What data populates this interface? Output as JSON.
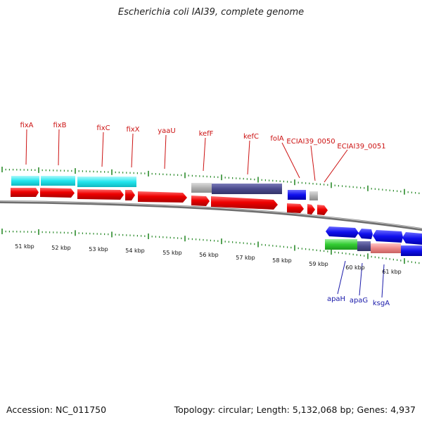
{
  "title": "Escherichia coli IAI39, complete genome",
  "footer": {
    "accession": "Accession: NC_011750",
    "summary": "Topology: circular; Length: 5,132,068 bp; Genes: 4,937"
  },
  "top_labels": [
    "fixA",
    "fixB",
    "fixC",
    "fixX",
    "yaaU",
    "kefF",
    "kefC",
    "folA",
    "ECIAI39_0050",
    "ECIAI39_0051"
  ],
  "bottom_labels": [
    "apaH",
    "apaG",
    "ksgA"
  ],
  "kbp_ticks": [
    "51 kbp",
    "52 kbp",
    "53 kbp",
    "54 kbp",
    "55 kbp",
    "56 kbp",
    "57 kbp",
    "58 kbp",
    "59 kbp",
    "60 kbp",
    "61 kbp"
  ],
  "colors": {
    "label_red": "#cc1111",
    "label_blue": "#1a1aaa",
    "tick_green": "#2a8a2a",
    "gene_red": "#ee0000",
    "feature_cyan": "#22e6ee",
    "feature_gray": "#b0b0b0",
    "feature_slate": "#4a4a8c",
    "feature_blue": "#1010ee",
    "feature_green": "#33cc33",
    "feature_salmon": "#ee8888"
  }
}
